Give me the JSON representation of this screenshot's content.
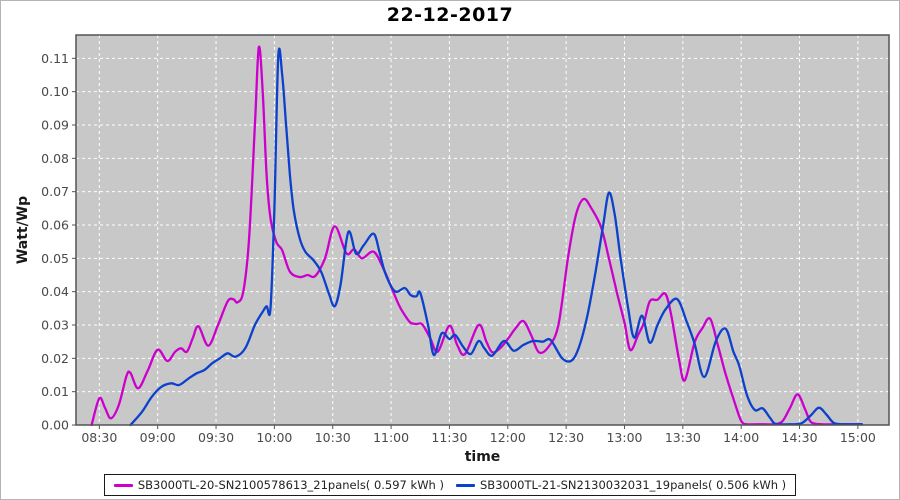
{
  "chart_data": {
    "type": "line",
    "title": "22-12-2017",
    "xlabel": "time",
    "ylabel": "Watt/Wp",
    "grid": true,
    "legend_position": "bottom",
    "plot_bg": "#c8c8c8",
    "grid_color": "#ffffff",
    "x_ticks": [
      "08:30",
      "09:00",
      "09:30",
      "10:00",
      "10:30",
      "11:00",
      "11:30",
      "12:00",
      "12:30",
      "13:00",
      "13:30",
      "14:00",
      "14:30",
      "15:00"
    ],
    "y_ticks": [
      "0.00",
      "0.01",
      "0.02",
      "0.03",
      "0.04",
      "0.05",
      "0.06",
      "0.07",
      "0.08",
      "0.09",
      "0.10",
      "0.11"
    ],
    "x_axis": {
      "start": "08:18",
      "end": "15:16"
    },
    "y_axis": {
      "min": 0,
      "max": 0.117
    },
    "series": [
      {
        "name": "SB3000TL-20-SN2100578613_21panels",
        "energy_kwh": "0.597",
        "legend_label": "SB3000TL-20-SN2100578613_21panels( 0.597 kWh )",
        "color": "#cc00cc",
        "points": [
          [
            "08:26",
            0.0
          ],
          [
            "08:30",
            0.008
          ],
          [
            "08:33",
            0.005
          ],
          [
            "08:36",
            0.002
          ],
          [
            "08:40",
            0.006
          ],
          [
            "08:44",
            0.0148
          ],
          [
            "08:46",
            0.0156
          ],
          [
            "08:50",
            0.011
          ],
          [
            "08:55",
            0.0165
          ],
          [
            "09:00",
            0.0226
          ],
          [
            "09:05",
            0.0192
          ],
          [
            "09:09",
            0.022
          ],
          [
            "09:12",
            0.023
          ],
          [
            "09:15",
            0.022
          ],
          [
            "09:18",
            0.026
          ],
          [
            "09:21",
            0.0296
          ],
          [
            "09:26",
            0.0238
          ],
          [
            "09:31",
            0.03
          ],
          [
            "09:36",
            0.0371
          ],
          [
            "09:39",
            0.0377
          ],
          [
            "09:41",
            0.0368
          ],
          [
            "09:44",
            0.04
          ],
          [
            "09:47",
            0.056
          ],
          [
            "09:50",
            0.09
          ],
          [
            "09:52",
            0.1133
          ],
          [
            "09:54",
            0.1
          ],
          [
            "09:56",
            0.075
          ],
          [
            "09:58",
            0.062
          ],
          [
            "10:01",
            0.0549
          ],
          [
            "10:04",
            0.0524
          ],
          [
            "10:08",
            0.046
          ],
          [
            "10:13",
            0.0444
          ],
          [
            "10:17",
            0.045
          ],
          [
            "10:21",
            0.0447
          ],
          [
            "10:26",
            0.05
          ],
          [
            "10:31",
            0.0596
          ],
          [
            "10:37",
            0.0515
          ],
          [
            "10:41",
            0.0527
          ],
          [
            "10:45",
            0.05
          ],
          [
            "10:51",
            0.052
          ],
          [
            "10:56",
            0.047
          ],
          [
            "11:00",
            0.0415
          ],
          [
            "11:04",
            0.036
          ],
          [
            "11:07",
            0.033
          ],
          [
            "11:10",
            0.0307
          ],
          [
            "11:13",
            0.0303
          ],
          [
            "11:16",
            0.0302
          ],
          [
            "11:20",
            0.0262
          ],
          [
            "11:24",
            0.022
          ],
          [
            "11:30",
            0.0298
          ],
          [
            "11:34",
            0.024
          ],
          [
            "11:38",
            0.0213
          ],
          [
            "11:45",
            0.03
          ],
          [
            "11:49",
            0.025
          ],
          [
            "11:52",
            0.0218
          ],
          [
            "11:56",
            0.023
          ],
          [
            "12:00",
            0.0258
          ],
          [
            "12:04",
            0.029
          ],
          [
            "12:08",
            0.0312
          ],
          [
            "12:12",
            0.027
          ],
          [
            "12:16",
            0.0218
          ],
          [
            "12:21",
            0.0235
          ],
          [
            "12:26",
            0.03
          ],
          [
            "12:31",
            0.0504
          ],
          [
            "12:35",
            0.063
          ],
          [
            "12:39",
            0.0678
          ],
          [
            "12:43",
            0.065
          ],
          [
            "12:48",
            0.0593
          ],
          [
            "12:52",
            0.05
          ],
          [
            "12:56",
            0.04
          ],
          [
            "13:00",
            0.0307
          ],
          [
            "13:03",
            0.0225
          ],
          [
            "13:07",
            0.027
          ],
          [
            "13:10",
            0.0307
          ],
          [
            "13:13",
            0.0371
          ],
          [
            "13:17",
            0.0376
          ],
          [
            "13:21",
            0.0394
          ],
          [
            "13:24",
            0.033
          ],
          [
            "13:28",
            0.0198
          ],
          [
            "13:31",
            0.0134
          ],
          [
            "13:36",
            0.0247
          ],
          [
            "13:40",
            0.029
          ],
          [
            "13:44",
            0.0319
          ],
          [
            "13:48",
            0.024
          ],
          [
            "13:52",
            0.0153
          ],
          [
            "13:56",
            0.0079
          ],
          [
            "14:00",
            0.0012
          ],
          [
            "14:03",
            0.0002
          ],
          [
            "14:10",
            0.0002
          ],
          [
            "14:16",
            0.0002
          ],
          [
            "14:21",
            0.001
          ],
          [
            "14:25",
            0.005
          ],
          [
            "14:29",
            0.0092
          ],
          [
            "14:33",
            0.0045
          ],
          [
            "14:36",
            0.0008
          ],
          [
            "14:42",
            0.0002
          ],
          [
            "14:50",
            0.0002
          ],
          [
            "14:56",
            0.0002
          ],
          [
            "15:02",
            0.0002
          ]
        ]
      },
      {
        "name": "SB3000TL-21-SN2130032031_19panels",
        "energy_kwh": "0.506",
        "legend_label": "SB3000TL-21-SN2130032031_19panels( 0.506 kWh )",
        "color": "#0c41cc",
        "points": [
          [
            "08:46",
            0.0
          ],
          [
            "08:52",
            0.004
          ],
          [
            "08:57",
            0.0085
          ],
          [
            "09:02",
            0.0115
          ],
          [
            "09:07",
            0.0125
          ],
          [
            "09:11",
            0.012
          ],
          [
            "09:16",
            0.014
          ],
          [
            "09:20",
            0.0155
          ],
          [
            "09:24",
            0.0165
          ],
          [
            "09:28",
            0.0185
          ],
          [
            "09:32",
            0.02
          ],
          [
            "09:36",
            0.0215
          ],
          [
            "09:40",
            0.0205
          ],
          [
            "09:45",
            0.023
          ],
          [
            "09:50",
            0.03
          ],
          [
            "09:54",
            0.034
          ],
          [
            "09:56",
            0.0356
          ],
          [
            "09:58",
            0.035
          ],
          [
            "10:00",
            0.065
          ],
          [
            "10:02",
            0.1108
          ],
          [
            "10:04",
            0.105
          ],
          [
            "10:06",
            0.09
          ],
          [
            "10:08",
            0.075
          ],
          [
            "10:10",
            0.0643
          ],
          [
            "10:13",
            0.056
          ],
          [
            "10:16",
            0.0519
          ],
          [
            "10:20",
            0.0495
          ],
          [
            "10:24",
            0.046
          ],
          [
            "10:28",
            0.0395
          ],
          [
            "10:31",
            0.0356
          ],
          [
            "10:34",
            0.042
          ],
          [
            "10:38",
            0.0579
          ],
          [
            "10:42",
            0.0514
          ],
          [
            "10:46",
            0.054
          ],
          [
            "10:51",
            0.0574
          ],
          [
            "10:54",
            0.052
          ],
          [
            "10:57",
            0.0455
          ],
          [
            "11:02",
            0.0401
          ],
          [
            "11:07",
            0.0411
          ],
          [
            "11:10",
            0.039
          ],
          [
            "11:13",
            0.0386
          ],
          [
            "11:15",
            0.0396
          ],
          [
            "11:19",
            0.03
          ],
          [
            "11:22",
            0.021
          ],
          [
            "11:26",
            0.0275
          ],
          [
            "11:30",
            0.0258
          ],
          [
            "11:33",
            0.027
          ],
          [
            "11:37",
            0.0235
          ],
          [
            "11:41",
            0.0213
          ],
          [
            "11:45",
            0.0252
          ],
          [
            "11:48",
            0.023
          ],
          [
            "11:52",
            0.0208
          ],
          [
            "11:58",
            0.0252
          ],
          [
            "12:03",
            0.0223
          ],
          [
            "12:08",
            0.024
          ],
          [
            "12:13",
            0.0252
          ],
          [
            "12:18",
            0.025
          ],
          [
            "12:22",
            0.0255
          ],
          [
            "12:28",
            0.02
          ],
          [
            "12:33",
            0.0194
          ],
          [
            "12:37",
            0.024
          ],
          [
            "12:41",
            0.033
          ],
          [
            "12:45",
            0.0455
          ],
          [
            "12:49",
            0.0598
          ],
          [
            "12:52",
            0.0697
          ],
          [
            "12:55",
            0.063
          ],
          [
            "12:58",
            0.05
          ],
          [
            "13:02",
            0.0346
          ],
          [
            "13:05",
            0.0262
          ],
          [
            "13:09",
            0.0328
          ],
          [
            "13:13",
            0.0247
          ],
          [
            "13:17",
            0.03
          ],
          [
            "13:21",
            0.0346
          ],
          [
            "13:27",
            0.0378
          ],
          [
            "13:32",
            0.031
          ],
          [
            "13:36",
            0.0245
          ],
          [
            "13:41",
            0.0144
          ],
          [
            "13:47",
            0.0252
          ],
          [
            "13:52",
            0.0289
          ],
          [
            "13:56",
            0.022
          ],
          [
            "13:59",
            0.0178
          ],
          [
            "14:03",
            0.0089
          ],
          [
            "14:07",
            0.0045
          ],
          [
            "14:11",
            0.005
          ],
          [
            "14:15",
            0.002
          ],
          [
            "14:18",
            0.0002
          ],
          [
            "14:25",
            0.0002
          ],
          [
            "14:31",
            0.0005
          ],
          [
            "14:36",
            0.003
          ],
          [
            "14:40",
            0.0052
          ],
          [
            "14:44",
            0.003
          ],
          [
            "14:48",
            0.0005
          ],
          [
            "14:55",
            0.0002
          ],
          [
            "15:02",
            0.0002
          ]
        ]
      }
    ]
  }
}
